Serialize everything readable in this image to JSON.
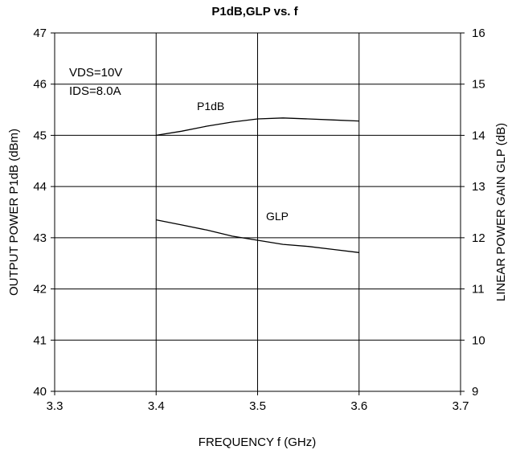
{
  "chart_data": {
    "type": "line",
    "title": "P1dB,GLP vs. f",
    "xlabel": "FREQUENCY f (GHz)",
    "ylabel_left": "OUTPUT POWER P1dB (dBm)",
    "ylabel_right": "LINEAR POWER GAIN GLP (dB)",
    "xlim": [
      3.3,
      3.7
    ],
    "ylim_left": [
      40,
      47
    ],
    "ylim_right": [
      9,
      16
    ],
    "x_ticks": [
      "3.3",
      "3.4",
      "3.5",
      "3.6",
      "3.7"
    ],
    "y_ticks_left": [
      "40",
      "41",
      "42",
      "43",
      "44",
      "45",
      "46",
      "47"
    ],
    "y_ticks_right": [
      "9",
      "10",
      "11",
      "12",
      "13",
      "14",
      "15",
      "16"
    ],
    "grid": true,
    "annotation_lines": [
      "VDS=10V",
      "IDS=8.0A"
    ],
    "series": [
      {
        "name": "P1dB",
        "axis": "left",
        "x": [
          3.4,
          3.425,
          3.45,
          3.475,
          3.5,
          3.525,
          3.55,
          3.575,
          3.6
        ],
        "y": [
          45.0,
          45.08,
          45.18,
          45.26,
          45.32,
          45.34,
          45.32,
          45.3,
          45.28
        ]
      },
      {
        "name": "GLP",
        "axis": "right",
        "x": [
          3.4,
          3.425,
          3.45,
          3.475,
          3.5,
          3.525,
          3.55,
          3.575,
          3.6
        ],
        "y": [
          12.35,
          12.25,
          12.15,
          12.03,
          11.95,
          11.87,
          11.83,
          11.77,
          11.71
        ]
      }
    ]
  }
}
